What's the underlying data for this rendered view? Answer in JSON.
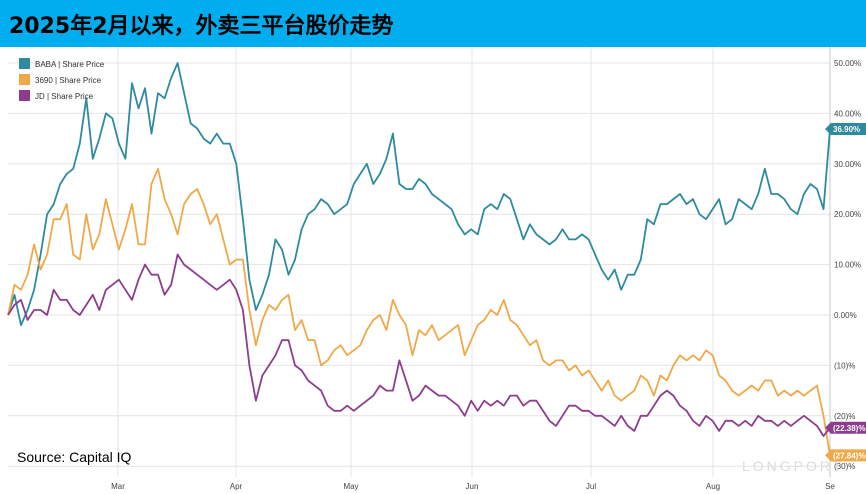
{
  "title": "2025年2月以来，外卖三平台股价走势",
  "source": "Source: Capital IQ",
  "watermark": "LONGPORT",
  "chart_data": {
    "type": "line",
    "x_labels": [
      "Mar",
      "Apr",
      "May",
      "Jun",
      "Jul",
      "Aug",
      "Se"
    ],
    "y_ticks": [
      50,
      40,
      30,
      20,
      10,
      0,
      -10,
      -20,
      -30
    ],
    "y_tick_labels": [
      "50.00%",
      "40.00%",
      "30.00%",
      "20.00%",
      "10.00%",
      "0.00%",
      "(10)%",
      "(20)%",
      "(30)%"
    ],
    "ylim": [
      -30,
      52
    ],
    "grid": true,
    "legend_position": "top-left",
    "series": [
      {
        "name": "BABA | Share Price",
        "color": "#2e8b9f",
        "end_label": "36.90%",
        "values": [
          0,
          4,
          -2,
          1,
          5,
          12,
          20,
          22,
          26,
          28,
          29,
          34,
          43,
          31,
          35,
          40,
          39,
          34,
          31,
          46,
          41,
          45,
          36,
          44,
          43,
          47,
          50,
          44,
          38,
          37,
          35,
          34,
          36,
          34,
          34,
          30,
          19,
          7,
          1,
          4,
          8,
          15,
          13,
          8,
          11,
          17,
          20,
          21,
          23,
          22,
          20,
          21,
          22,
          26,
          28,
          30,
          26,
          28,
          31,
          36,
          26,
          25,
          25,
          27,
          26,
          24,
          23,
          22,
          21,
          18,
          16,
          17,
          16,
          21,
          22,
          21,
          24,
          23,
          19,
          15,
          18,
          16,
          15,
          14,
          15,
          17,
          15,
          15,
          16,
          15,
          12,
          9,
          7,
          9,
          5,
          8,
          8,
          11,
          19,
          18,
          22,
          22,
          23,
          24,
          22,
          23,
          20,
          19,
          21,
          23,
          18,
          19,
          23,
          22,
          21,
          24,
          29,
          24,
          24,
          23,
          21,
          20,
          24,
          26,
          25,
          21,
          36.9
        ]
      },
      {
        "name": "3690 | Share Price",
        "color": "#f0a848",
        "end_label": "(27.84)%",
        "values": [
          0,
          6,
          5,
          8,
          14,
          9,
          12,
          19,
          19,
          22,
          12,
          11,
          20,
          13,
          16,
          23,
          18,
          13,
          17,
          22,
          14,
          14,
          26,
          29,
          23,
          20,
          16,
          22,
          24,
          25,
          22,
          18,
          20,
          15,
          10,
          11,
          11,
          1,
          -6,
          -1,
          2,
          1,
          3,
          4,
          -3,
          -1,
          -5,
          -5,
          -10,
          -9,
          -7,
          -6,
          -8,
          -7,
          -6,
          -3,
          -1,
          0,
          -3,
          3,
          0,
          -2,
          -8,
          -3,
          -4,
          -2,
          -5,
          -4,
          -3,
          -2,
          -8,
          -5,
          -2,
          -1,
          1,
          0,
          3,
          -1,
          -2,
          -4,
          -6,
          -5,
          -9,
          -10,
          -9,
          -9,
          -11,
          -10,
          -12,
          -11,
          -13,
          -15,
          -13,
          -16,
          -17,
          -16,
          -15,
          -12,
          -13,
          -16,
          -12,
          -13,
          -10,
          -8,
          -9,
          -8,
          -9,
          -7,
          -8,
          -12,
          -13,
          -15,
          -16,
          -15,
          -14,
          -15,
          -13,
          -13,
          -16,
          -15,
          -16,
          -15,
          -16,
          -15,
          -14,
          -20,
          -27.84
        ]
      },
      {
        "name": "JD | Share Price",
        "color": "#8e3c8e",
        "end_label": "(22.38)%",
        "values": [
          0,
          2,
          3,
          -1,
          1,
          1,
          0,
          5,
          3,
          3,
          1,
          0,
          2,
          4,
          1,
          5,
          6,
          7,
          5,
          3,
          7,
          10,
          8,
          8,
          4,
          6,
          12,
          10,
          9,
          8,
          7,
          6,
          5,
          6,
          7,
          5,
          1,
          -10,
          -17,
          -12,
          -10,
          -8,
          -5,
          -5,
          -10,
          -11,
          -13,
          -14,
          -15,
          -18,
          -19,
          -19,
          -18,
          -19,
          -18,
          -17,
          -16,
          -14,
          -15,
          -15,
          -9,
          -13,
          -17,
          -16,
          -14,
          -15,
          -16,
          -16,
          -17,
          -18,
          -20,
          -17,
          -19,
          -17,
          -18,
          -17,
          -18,
          -16,
          -16,
          -18,
          -17,
          -17,
          -19,
          -21,
          -22,
          -20,
          -18,
          -18,
          -19,
          -19,
          -20,
          -20,
          -21,
          -22,
          -20,
          -22,
          -23,
          -20,
          -20,
          -18,
          -16,
          -15,
          -16,
          -18,
          -19,
          -21,
          -22,
          -20,
          -21,
          -23,
          -21,
          -21,
          -22,
          -21,
          -22,
          -20,
          -21,
          -21,
          -22,
          -21,
          -22,
          -21,
          -20,
          -21,
          -22,
          -24,
          -22.38
        ]
      }
    ]
  }
}
